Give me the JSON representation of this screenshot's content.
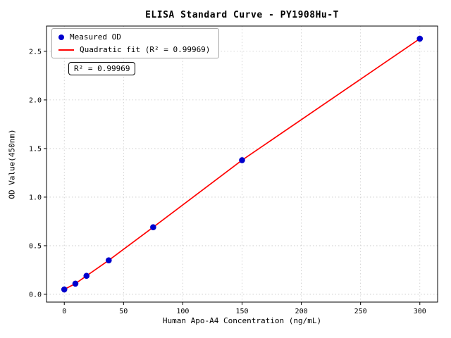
{
  "chart_data": {
    "type": "scatter",
    "title": "ELISA Standard Curve - PY1908Hu-T",
    "xlabel": "Human Apo-A4 Concentration (ng/mL)",
    "ylabel": "OD Value(450nm)",
    "xlim": [
      -15,
      315
    ],
    "ylim": [
      -0.08,
      2.76
    ],
    "xticks": [
      0,
      50,
      100,
      150,
      200,
      250,
      300
    ],
    "xtick_labels": [
      "0",
      "50",
      "100",
      "150",
      "200",
      "250",
      "300"
    ],
    "yticks": [
      0.0,
      0.5,
      1.0,
      1.5,
      2.0,
      2.5
    ],
    "ytick_labels": [
      "0.0",
      "0.5",
      "1.0",
      "1.5",
      "2.0",
      "2.5"
    ],
    "grid": true,
    "annotation": "R² = 0.99969",
    "legend": {
      "position": "upper-left",
      "entries": [
        {
          "label": "Measured OD",
          "marker": "dot",
          "color": "#0000cd"
        },
        {
          "label": "Quadratic fit (R² = 0.99969)",
          "marker": "line",
          "color": "#ff0000"
        }
      ]
    },
    "series": [
      {
        "name": "Measured OD",
        "type": "scatter",
        "color": "#0000cd",
        "points": [
          [
            0,
            0.05
          ],
          [
            9.375,
            0.11
          ],
          [
            18.75,
            0.19
          ],
          [
            37.5,
            0.35
          ],
          [
            75,
            0.69
          ],
          [
            150,
            1.38
          ],
          [
            300,
            2.63
          ]
        ]
      },
      {
        "name": "Quadratic fit",
        "type": "line",
        "color": "#ff0000",
        "points": [
          [
            0,
            0.05
          ],
          [
            9.375,
            0.11
          ],
          [
            18.75,
            0.19
          ],
          [
            37.5,
            0.35
          ],
          [
            75,
            0.69
          ],
          [
            150,
            1.38
          ],
          [
            300,
            2.63
          ]
        ]
      }
    ],
    "frame_color": "#000000",
    "grid_color": "#c8c8c8"
  }
}
